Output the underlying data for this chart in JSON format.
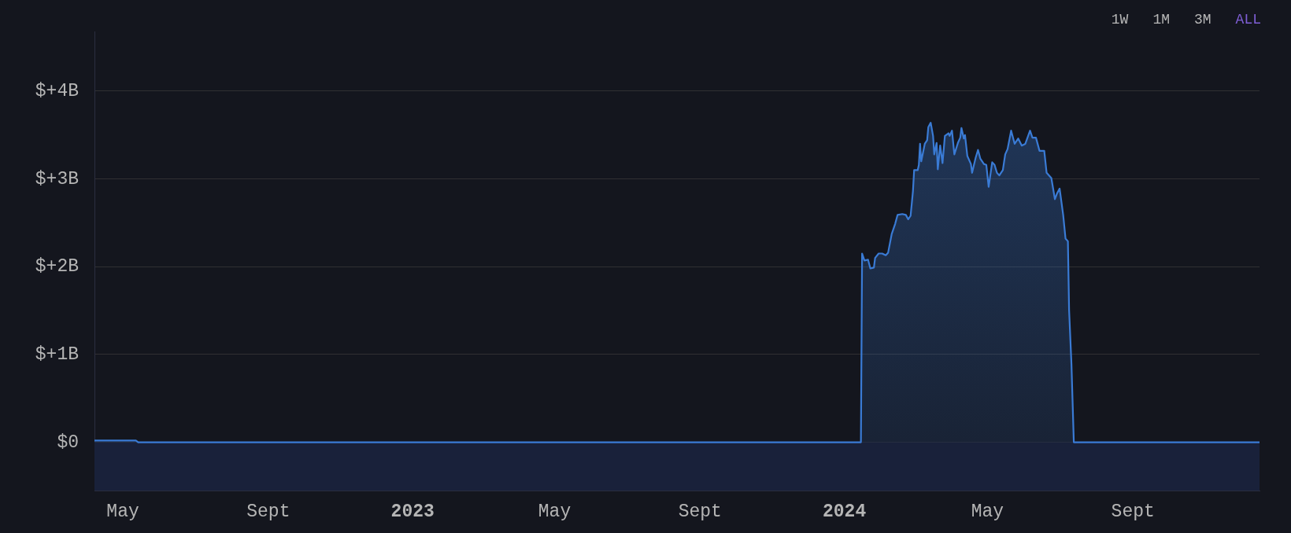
{
  "chart_data": {
    "type": "area",
    "x": [
      "2022-04-07",
      "2022-05-12",
      "2022-05-14",
      "2024-01-15",
      "2024-01-16",
      "2024-01-18",
      "2024-01-21",
      "2024-01-23",
      "2024-01-26",
      "2024-01-27",
      "2024-01-30",
      "2024-02-02",
      "2024-02-05",
      "2024-02-07",
      "2024-02-10",
      "2024-02-13",
      "2024-02-15",
      "2024-02-19",
      "2024-02-22",
      "2024-02-24",
      "2024-02-26",
      "2024-02-28",
      "2024-02-29",
      "2024-03-03",
      "2024-03-04",
      "2024-03-05",
      "2024-03-06",
      "2024-03-09",
      "2024-03-11",
      "2024-03-12",
      "2024-03-14",
      "2024-03-16",
      "2024-03-17",
      "2024-03-19",
      "2024-03-20",
      "2024-03-22",
      "2024-03-24",
      "2024-03-26",
      "2024-03-29",
      "2024-03-30",
      "2024-04-01",
      "2024-04-03",
      "2024-04-06",
      "2024-04-08",
      "2024-04-09",
      "2024-04-11",
      "2024-04-12",
      "2024-04-14",
      "2024-04-17",
      "2024-04-18",
      "2024-04-21",
      "2024-04-23",
      "2024-04-25",
      "2024-04-28",
      "2024-04-30",
      "2024-05-02",
      "2024-05-05",
      "2024-05-07",
      "2024-05-09",
      "2024-05-11",
      "2024-05-14",
      "2024-05-16",
      "2024-05-18",
      "2024-05-21",
      "2024-05-24",
      "2024-05-27",
      "2024-05-30",
      "2024-06-02",
      "2024-06-06",
      "2024-06-08",
      "2024-06-11",
      "2024-06-14",
      "2024-06-18",
      "2024-06-20",
      "2024-06-24",
      "2024-06-27",
      "2024-06-29",
      "2024-07-01",
      "2024-07-04",
      "2024-07-06",
      "2024-07-08",
      "2024-07-09",
      "2024-07-11",
      "2024-07-13",
      "2024-12-17"
    ],
    "values": [
      0.02,
      0.02,
      0,
      0,
      2.15,
      2.07,
      2.08,
      1.98,
      1.99,
      2.1,
      2.15,
      2.15,
      2.13,
      2.16,
      2.37,
      2.49,
      2.59,
      2.6,
      2.59,
      2.54,
      2.58,
      2.86,
      3.1,
      3.1,
      3.16,
      3.4,
      3.2,
      3.4,
      3.44,
      3.59,
      3.64,
      3.49,
      3.28,
      3.41,
      3.11,
      3.38,
      3.18,
      3.49,
      3.52,
      3.49,
      3.55,
      3.28,
      3.41,
      3.47,
      3.58,
      3.46,
      3.5,
      3.26,
      3.17,
      3.07,
      3.24,
      3.33,
      3.23,
      3.17,
      3.16,
      2.91,
      3.19,
      3.16,
      3.07,
      3.04,
      3.1,
      3.28,
      3.34,
      3.55,
      3.4,
      3.46,
      3.38,
      3.4,
      3.55,
      3.47,
      3.47,
      3.32,
      3.32,
      3.07,
      3.01,
      2.77,
      2.84,
      2.89,
      2.59,
      2.32,
      2.29,
      1.51,
      0.89,
      0,
      0
    ],
    "color": "#3a7bd5",
    "xlim": [
      "2022-04-07",
      "2024-12-17"
    ],
    "xticks": [
      {
        "value": "2022-05-01",
        "label": "May"
      },
      {
        "value": "2022-09-01",
        "label": "Sept"
      },
      {
        "value": "2023-01-01",
        "label": "2023"
      },
      {
        "value": "2023-05-01",
        "label": "May"
      },
      {
        "value": "2023-09-01",
        "label": "Sept"
      },
      {
        "value": "2024-01-01",
        "label": "2024"
      },
      {
        "value": "2024-05-01",
        "label": "May"
      },
      {
        "value": "2024-09-01",
        "label": "Sept"
      }
    ],
    "ylim": [
      -0.55,
      4.68
    ],
    "yticks": [
      {
        "value": 0,
        "label": "$0"
      },
      {
        "value": 1,
        "label": "$+1B"
      },
      {
        "value": 2,
        "label": "$+2B"
      },
      {
        "value": 3,
        "label": "$+3B"
      },
      {
        "value": 4,
        "label": "$+4B"
      }
    ],
    "bands": [
      {
        "axis": "y",
        "from": -0.55,
        "to": 0,
        "color": "#19213a"
      }
    ],
    "grid": "y",
    "annotations": [
      "1W",
      "1M",
      "3M",
      "ALL"
    ]
  }
}
